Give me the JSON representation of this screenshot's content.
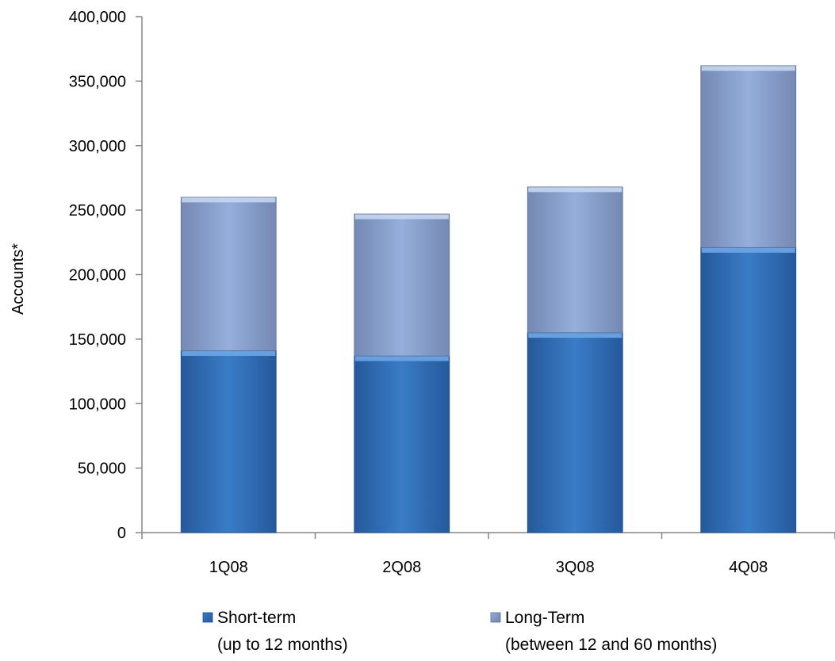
{
  "chart_data": {
    "type": "bar",
    "stacked": true,
    "categories": [
      "1Q08",
      "2Q08",
      "3Q08",
      "4Q08"
    ],
    "series": [
      {
        "name": "Short-term",
        "sublabel": "(up to 12 months)",
        "values": [
          141000,
          137000,
          155000,
          221000
        ],
        "color": "#2f6db5"
      },
      {
        "name": "Long-Term",
        "sublabel": "(between 12 and 60 months)",
        "values": [
          119000,
          110000,
          113000,
          141000
        ],
        "color": "#8aa3cf"
      }
    ],
    "ylabel": "Accounts*",
    "ylim": [
      0,
      400000
    ],
    "yticks": [
      0,
      50000,
      100000,
      150000,
      200000,
      250000,
      300000,
      350000,
      400000
    ],
    "ytick_labels": [
      "0",
      "50,000",
      "100,000",
      "150,000",
      "200,000",
      "250,000",
      "300,000",
      "350,000",
      "400,000"
    ],
    "grid": false,
    "legend_position": "bottom"
  }
}
